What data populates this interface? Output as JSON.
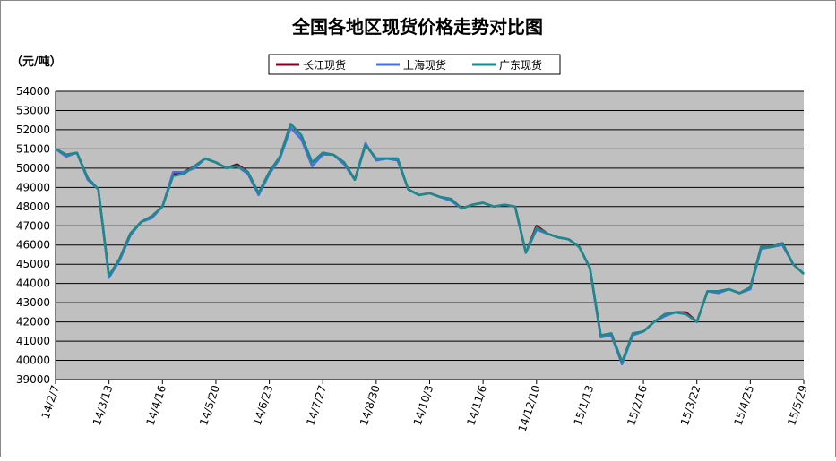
{
  "chart_data": {
    "type": "line",
    "title": "全国各地区现货价格走势对比图",
    "y_axis_label": "（元/吨）",
    "categories": [
      "14/2/7",
      null,
      null,
      null,
      null,
      "14/3/13",
      null,
      null,
      null,
      null,
      "14/4/16",
      null,
      null,
      null,
      null,
      "14/5/20",
      null,
      null,
      null,
      null,
      "14/6/23",
      null,
      null,
      null,
      null,
      "14/7/27",
      null,
      null,
      null,
      null,
      "14/8/30",
      null,
      null,
      null,
      null,
      "14/10/3",
      null,
      null,
      null,
      null,
      "14/11/6",
      null,
      null,
      null,
      null,
      "14/12/10",
      null,
      null,
      null,
      null,
      "15/1/13",
      null,
      null,
      null,
      null,
      "15/2/16",
      null,
      null,
      null,
      null,
      "15/3/22",
      null,
      null,
      null,
      null,
      "15/4/25",
      null,
      null,
      null,
      null,
      "15/5/29"
    ],
    "series": [
      {
        "name": "长江现货",
        "color": "#800020",
        "values": [
          51000,
          50700,
          50800,
          49500,
          48900,
          44400,
          45300,
          46600,
          47200,
          47500,
          48000,
          49700,
          49800,
          50100,
          50500,
          50300,
          50000,
          50200,
          49800,
          48700,
          49800,
          50600,
          52300,
          51700,
          50300,
          50800,
          50700,
          50300,
          49400,
          51200,
          50500,
          50500,
          50500,
          48900,
          48600,
          48700,
          48500,
          48400,
          47900,
          48100,
          48200,
          48000,
          48100,
          48000,
          45600,
          47000,
          46600,
          46400,
          46300,
          45900,
          44800,
          41300,
          41400,
          39900,
          41400,
          41500,
          42000,
          42400,
          42500,
          42500,
          42000,
          43600,
          43600,
          43700,
          43500,
          43800,
          45900,
          45900,
          46100,
          45000,
          44500
        ]
      },
      {
        "name": "上海现货",
        "color": "#4a6fdc",
        "values": [
          51000,
          50600,
          50800,
          49400,
          48900,
          44300,
          45200,
          46500,
          47200,
          47400,
          48000,
          49800,
          49800,
          50000,
          50500,
          50300,
          50000,
          50100,
          49700,
          48600,
          49700,
          50500,
          52100,
          51500,
          50100,
          50700,
          50700,
          50200,
          49400,
          51300,
          50400,
          50500,
          50400,
          48900,
          48600,
          48700,
          48500,
          48300,
          47900,
          48100,
          48200,
          48000,
          48100,
          48000,
          45600,
          46800,
          46600,
          46400,
          46300,
          45900,
          44800,
          41200,
          41300,
          39800,
          41300,
          41500,
          42000,
          42300,
          42500,
          42400,
          42000,
          43600,
          43500,
          43700,
          43500,
          43700,
          45800,
          45900,
          46000,
          45000,
          44500
        ]
      },
      {
        "name": "广东现货",
        "color": "#1a8a8a",
        "values": [
          51000,
          50700,
          50800,
          49500,
          48900,
          44400,
          45300,
          46600,
          47200,
          47500,
          48000,
          49600,
          49700,
          50100,
          50500,
          50300,
          50000,
          50100,
          49800,
          48700,
          49800,
          50600,
          52300,
          51700,
          50300,
          50800,
          50700,
          50300,
          49400,
          51200,
          50500,
          50500,
          50500,
          48900,
          48600,
          48700,
          48500,
          48400,
          47900,
          48100,
          48200,
          48000,
          48100,
          48000,
          45600,
          46900,
          46600,
          46400,
          46300,
          45900,
          44800,
          41300,
          41400,
          39900,
          41400,
          41500,
          42000,
          42400,
          42500,
          42400,
          42000,
          43600,
          43600,
          43700,
          43500,
          43800,
          45900,
          45900,
          46100,
          45000,
          44500
        ]
      }
    ],
    "ylim": [
      39000,
      54000
    ],
    "yticks": [
      39000,
      40000,
      41000,
      42000,
      43000,
      44000,
      45000,
      46000,
      47000,
      48000,
      49000,
      50000,
      51000,
      52000,
      53000,
      54000
    ],
    "grid": true,
    "legend": "top"
  }
}
